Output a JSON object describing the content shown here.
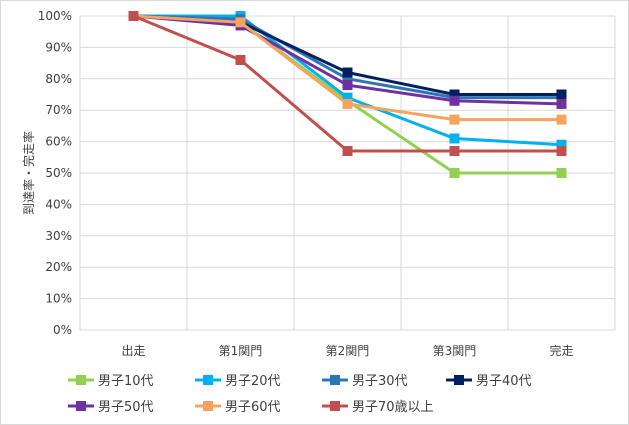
{
  "chart_data": {
    "type": "line",
    "categories": [
      "出走",
      "第1関門",
      "第2関門",
      "第3関門",
      "完走"
    ],
    "ylabel": "到達率・完走率",
    "xlabel": "",
    "ylim": [
      0,
      100
    ],
    "yticks": [
      "0%",
      "10%",
      "20%",
      "30%",
      "40%",
      "50%",
      "60%",
      "70%",
      "80%",
      "90%",
      "100%"
    ],
    "grid": true,
    "legend_position": "bottom",
    "series": [
      {
        "name": "男子10代",
        "color": "#92d050",
        "values": [
          100,
          98,
          73,
          50,
          50
        ]
      },
      {
        "name": "男子20代",
        "color": "#00b0f0",
        "values": [
          100,
          100,
          74,
          61,
          59
        ]
      },
      {
        "name": "男子30代",
        "color": "#2e75b6",
        "values": [
          100,
          99,
          80,
          74,
          74
        ]
      },
      {
        "name": "男子40代",
        "color": "#002060",
        "values": [
          100,
          98,
          82,
          75,
          75
        ]
      },
      {
        "name": "男子50代",
        "color": "#7030a0",
        "values": [
          100,
          97,
          78,
          73,
          72
        ]
      },
      {
        "name": "男子60代",
        "color": "#f4a460",
        "values": [
          100,
          98,
          72,
          67,
          67
        ]
      },
      {
        "name": "男子70歳以上",
        "color": "#c0504d",
        "values": [
          100,
          86,
          57,
          57,
          57
        ]
      }
    ]
  }
}
